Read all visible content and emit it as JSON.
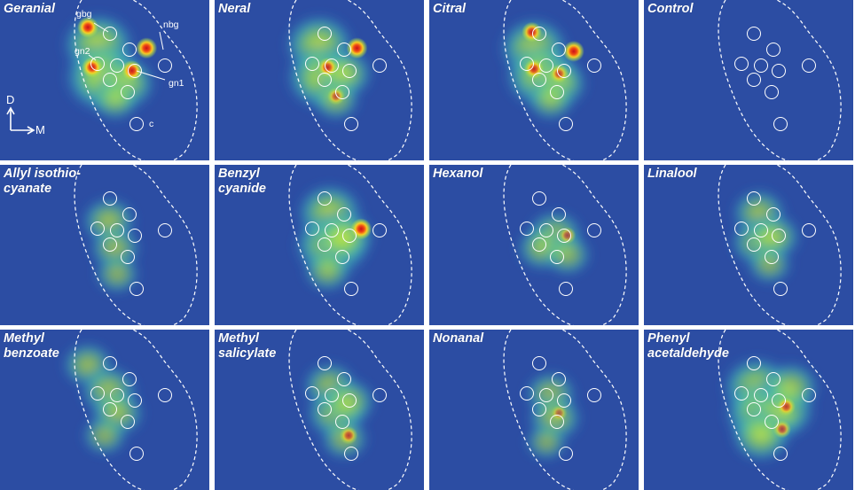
{
  "figure": {
    "background": "#2c4da3",
    "panels": [
      {
        "label": "Geranial",
        "spots": [
          [
            0.47,
            0.28,
            0.75
          ],
          [
            0.5,
            0.48,
            0.9
          ],
          [
            0.6,
            0.52,
            0.55
          ],
          [
            0.55,
            0.62,
            0.35
          ]
        ],
        "hot": [
          [
            0.42,
            0.17,
            1.0
          ],
          [
            0.7,
            0.3,
            1.0
          ],
          [
            0.44,
            0.42,
            0.95
          ],
          [
            0.63,
            0.44,
            0.95
          ]
        ]
      },
      {
        "label": "Neral",
        "spots": [
          [
            0.5,
            0.28,
            0.7
          ],
          [
            0.52,
            0.48,
            0.8
          ],
          [
            0.62,
            0.46,
            0.5
          ],
          [
            0.58,
            0.62,
            0.35
          ]
        ],
        "hot": [
          [
            0.68,
            0.3,
            1.0
          ],
          [
            0.54,
            0.42,
            0.85
          ],
          [
            0.58,
            0.6,
            0.65
          ]
        ]
      },
      {
        "label": "Citral",
        "spots": [
          [
            0.5,
            0.3,
            0.7
          ],
          [
            0.54,
            0.47,
            0.8
          ],
          [
            0.62,
            0.52,
            0.5
          ],
          [
            0.58,
            0.62,
            0.35
          ]
        ],
        "hot": [
          [
            0.49,
            0.2,
            0.9
          ],
          [
            0.69,
            0.32,
            1.0
          ],
          [
            0.5,
            0.43,
            0.85
          ],
          [
            0.62,
            0.46,
            0.75
          ]
        ]
      },
      {
        "label": "Control",
        "spots": [],
        "hot": []
      },
      {
        "label": "Allyl isothio-\ncyanate",
        "spots": [
          [
            0.52,
            0.35,
            0.45
          ],
          [
            0.55,
            0.52,
            0.4
          ],
          [
            0.56,
            0.68,
            0.3
          ]
        ],
        "hot": []
      },
      {
        "label": "Benzyl\ncyanide",
        "spots": [
          [
            0.55,
            0.3,
            0.65
          ],
          [
            0.56,
            0.5,
            0.8
          ],
          [
            0.62,
            0.45,
            0.55
          ],
          [
            0.54,
            0.66,
            0.35
          ]
        ],
        "hot": [
          [
            0.7,
            0.4,
            1.0
          ]
        ]
      },
      {
        "label": "Hexanol",
        "spots": [
          [
            0.6,
            0.44,
            0.5
          ],
          [
            0.54,
            0.52,
            0.4
          ],
          [
            0.66,
            0.56,
            0.35
          ]
        ],
        "hot": [
          [
            0.66,
            0.44,
            0.6
          ]
        ]
      },
      {
        "label": "Linalool",
        "spots": [
          [
            0.55,
            0.3,
            0.45
          ],
          [
            0.55,
            0.48,
            0.5
          ],
          [
            0.62,
            0.45,
            0.45
          ],
          [
            0.6,
            0.62,
            0.3
          ]
        ],
        "hot": []
      },
      {
        "label": "Methyl\nbenzoate",
        "spots": [
          [
            0.42,
            0.22,
            0.4
          ],
          [
            0.52,
            0.38,
            0.5
          ],
          [
            0.56,
            0.52,
            0.45
          ],
          [
            0.5,
            0.66,
            0.3
          ]
        ],
        "hot": []
      },
      {
        "label": "Methyl\nsalicylate",
        "spots": [
          [
            0.55,
            0.35,
            0.45
          ],
          [
            0.58,
            0.52,
            0.55
          ],
          [
            0.64,
            0.45,
            0.45
          ],
          [
            0.62,
            0.68,
            0.35
          ]
        ],
        "hot": [
          [
            0.64,
            0.66,
            0.7
          ]
        ]
      },
      {
        "label": "Nonanal",
        "spots": [
          [
            0.58,
            0.4,
            0.4
          ],
          [
            0.6,
            0.55,
            0.45
          ],
          [
            0.56,
            0.7,
            0.25
          ]
        ],
        "hot": [
          [
            0.62,
            0.52,
            0.5
          ]
        ]
      },
      {
        "label": "Phenyl\nacetaldehyde",
        "spots": [
          [
            0.54,
            0.36,
            0.7
          ],
          [
            0.57,
            0.52,
            0.85
          ],
          [
            0.66,
            0.5,
            0.65
          ],
          [
            0.56,
            0.66,
            0.55
          ],
          [
            0.7,
            0.36,
            0.5
          ]
        ],
        "hot": [
          [
            0.68,
            0.48,
            0.75
          ],
          [
            0.66,
            0.62,
            0.7
          ]
        ]
      }
    ],
    "annotations": {
      "gbg": "gbg",
      "nbg": "nbg",
      "gn2": "gn2",
      "gn1": "gn1",
      "c": "c",
      "axis_d": "D",
      "axis_m": "M"
    }
  }
}
